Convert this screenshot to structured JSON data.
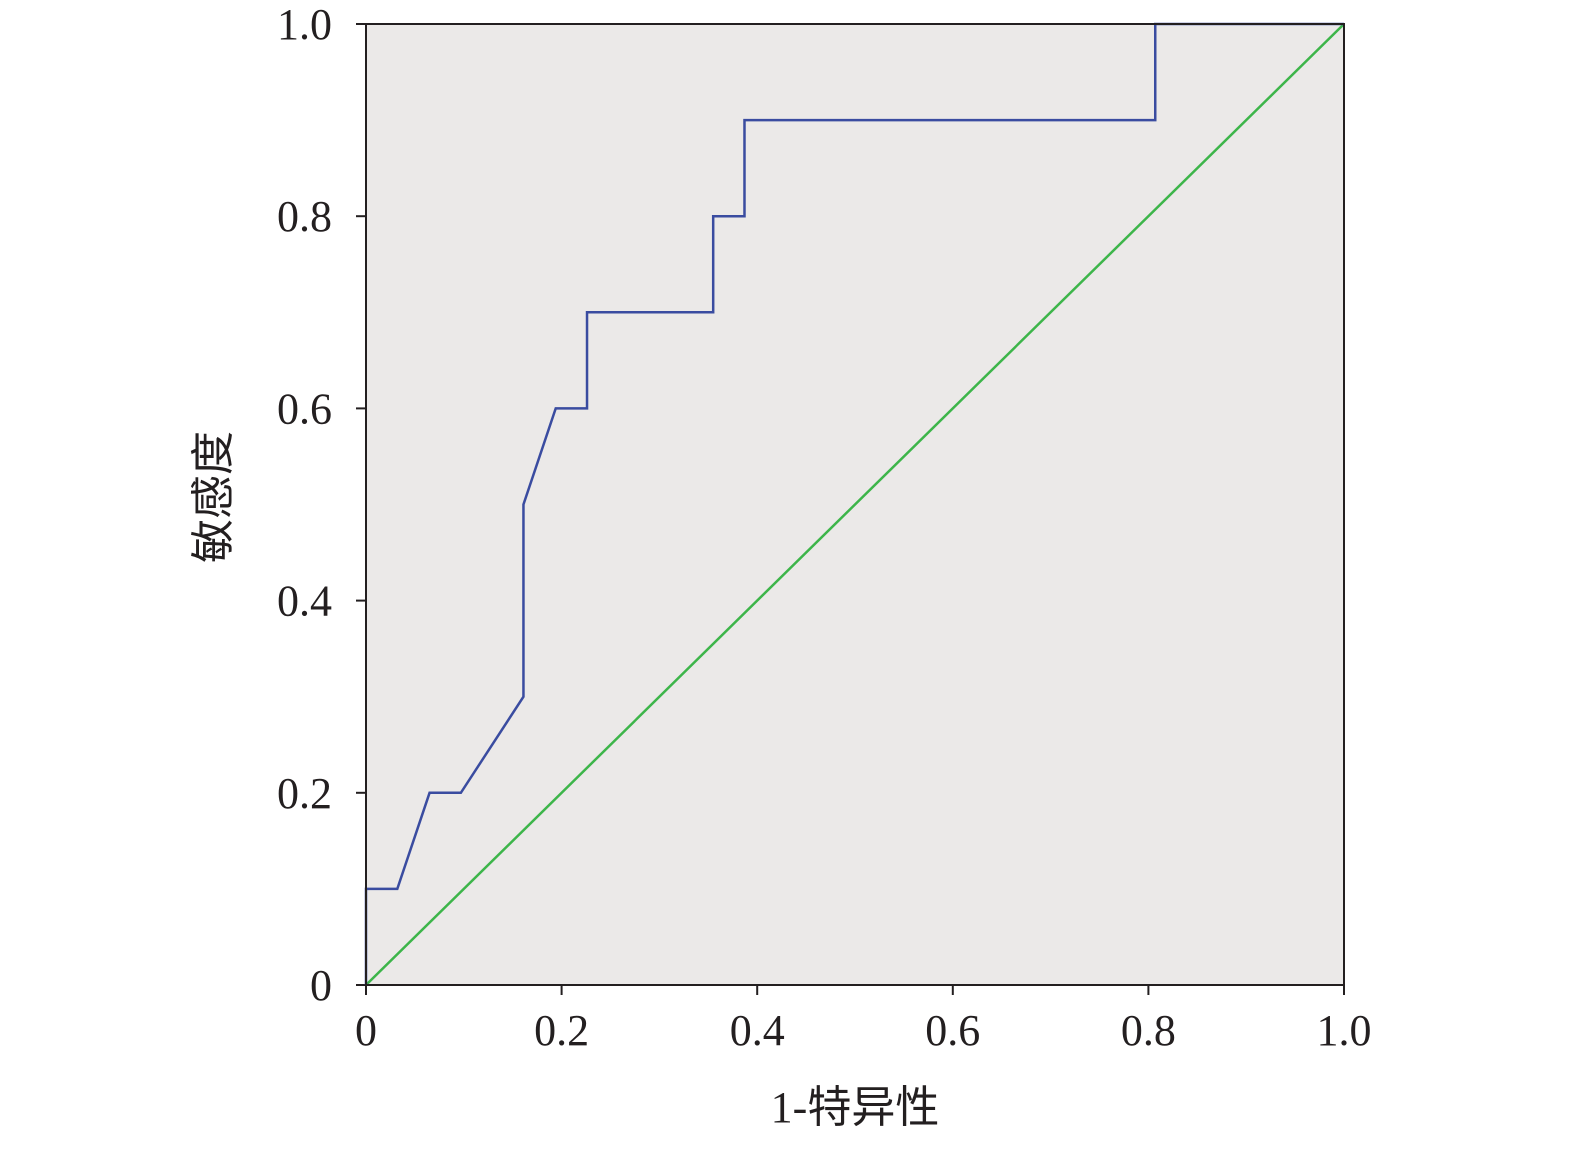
{
  "chart_data": {
    "type": "line",
    "x_label": "1-特异性",
    "y_label": "敏感度",
    "xlim": [
      0,
      1
    ],
    "ylim": [
      0,
      1
    ],
    "xticks": [
      0,
      0.2,
      0.4,
      0.6,
      0.8,
      {
        "value": 1,
        "label": "1.0"
      }
    ],
    "yticks": [
      0,
      0.2,
      0.4,
      0.6,
      0.8,
      {
        "value": 1,
        "label": "1.0"
      }
    ],
    "background": "#ebe9e8",
    "series": [
      {
        "color": "#3a4ca0",
        "x": [
          0,
          0,
          0.032,
          0.065,
          0.097,
          0.161,
          0.161,
          0.194,
          0.226,
          0.226,
          0.355,
          0.355,
          0.387,
          0.387,
          0.807,
          0.807,
          1
        ],
        "values": [
          0,
          0.1,
          0.1,
          0.2,
          0.2,
          0.3,
          0.5,
          0.6,
          0.6,
          0.7,
          0.7,
          0.8,
          0.8,
          0.9,
          0.9,
          1,
          1
        ]
      },
      {
        "color": "#3db54a",
        "x": [
          0,
          1
        ],
        "values": [
          0,
          1
        ]
      }
    ]
  }
}
